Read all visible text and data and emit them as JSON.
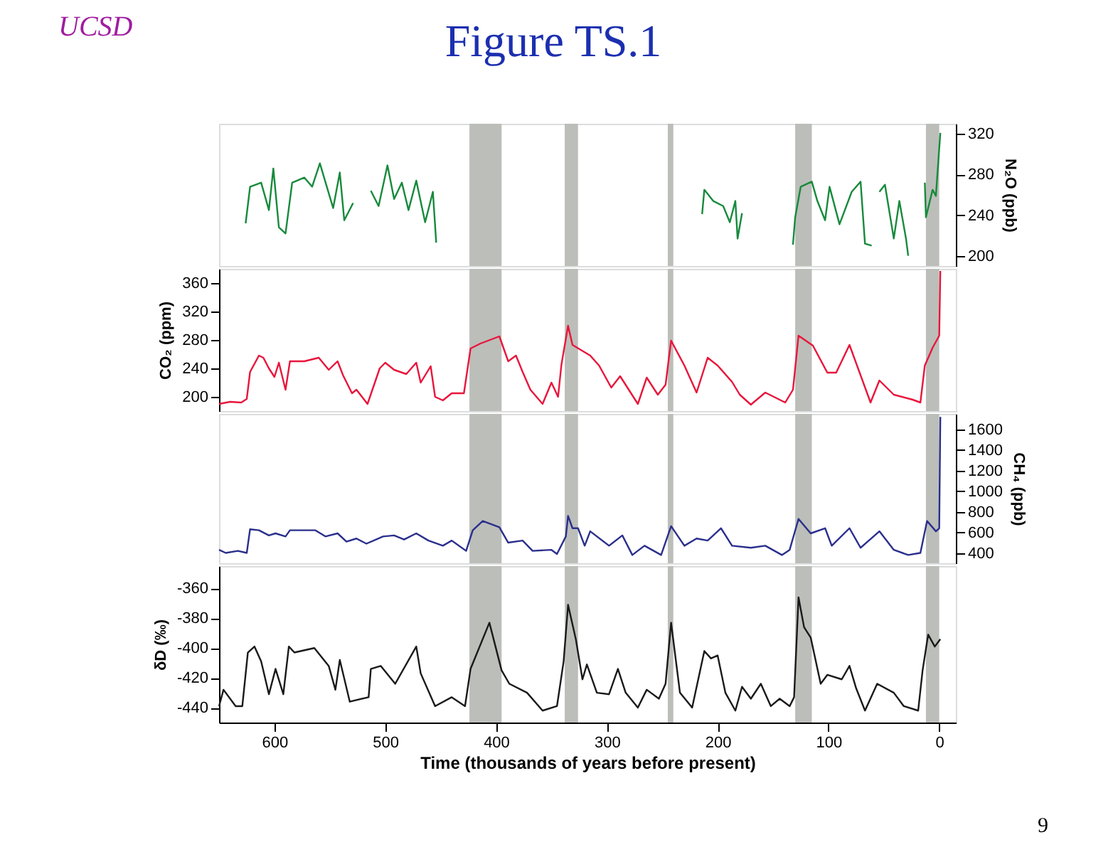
{
  "chart_data": [
    {
      "type": "line",
      "title": "Figure TS.1",
      "annotations": [
        "UCSD"
      ],
      "ylabel": "N₂O (ppb)",
      "xlim": [
        650,
        -15
      ],
      "ylim": [
        190,
        330
      ],
      "yticks": [
        200,
        240,
        280,
        320
      ],
      "tick_labels": "y",
      "grid": false,
      "line_style": "solid",
      "marker": "none",
      "bands": [
        {
          "axis": "x",
          "from": 424,
          "to": 395,
          "color": "#bcbeb9"
        },
        {
          "axis": "x",
          "from": 338,
          "to": 326,
          "color": "#bcbeb9"
        },
        {
          "axis": "x",
          "from": 245,
          "to": 240,
          "color": "#bcbeb9"
        },
        {
          "axis": "x",
          "from": 130,
          "to": 115,
          "color": "#bcbeb9"
        },
        {
          "axis": "x",
          "from": 12,
          "to": 0,
          "color": "#bcbeb9"
        }
      ],
      "series": [
        {
          "color": "#178a3c",
          "x": [
            626,
            622,
            612,
            605,
            601,
            596,
            590,
            584,
            573,
            566,
            559,
            547,
            541,
            537,
            529,
            521,
            513,
            506,
            498,
            492,
            485,
            479,
            472,
            464,
            457,
            454,
            334,
            214,
            212,
            204,
            195,
            189,
            184,
            182,
            178,
            155,
            132,
            130,
            125,
            115,
            110,
            103,
            99,
            90,
            79,
            71,
            67,
            61,
            57,
            54,
            49,
            41,
            36,
            30,
            28,
            20,
            13,
            12,
            6,
            3,
            -1
          ],
          "values": [
            232,
            268,
            272,
            245,
            286,
            228,
            222,
            272,
            277,
            268,
            291,
            247,
            282,
            235,
            252,
            null,
            264,
            249,
            289,
            256,
            272,
            245,
            274,
            233,
            263,
            213,
            null,
            241,
            265,
            254,
            249,
            233,
            254,
            217,
            242,
            null,
            211,
            238,
            268,
            273,
            254,
            235,
            268,
            231,
            263,
            273,
            212,
            210,
            null,
            263,
            270,
            217,
            254,
            217,
            200,
            null,
            272,
            238,
            265,
            259,
            321
          ]
        }
      ]
    },
    {
      "type": "line",
      "ylabel": "CO₂ (ppm)",
      "xlim": [
        650,
        -15
      ],
      "ylim": [
        180,
        380
      ],
      "yticks": [
        200,
        240,
        280,
        320,
        360
      ],
      "tick_labels": "y",
      "grid": false,
      "line_style": "solid",
      "marker": "none",
      "bands": [
        {
          "axis": "x",
          "from": 424,
          "to": 395,
          "color": "#bcbeb9"
        },
        {
          "axis": "x",
          "from": 338,
          "to": 326,
          "color": "#bcbeb9"
        },
        {
          "axis": "x",
          "from": 245,
          "to": 240,
          "color": "#bcbeb9"
        },
        {
          "axis": "x",
          "from": 130,
          "to": 115,
          "color": "#bcbeb9"
        },
        {
          "axis": "x",
          "from": 12,
          "to": 0,
          "color": "#bcbeb9"
        }
      ],
      "series": [
        {
          "color": "#e8163c",
          "x": [
            650,
            640,
            630,
            625,
            622,
            614,
            610,
            605,
            600,
            596,
            590,
            586,
            573,
            560,
            551,
            543,
            538,
            530,
            526,
            516,
            505,
            500,
            492,
            481,
            472,
            468,
            459,
            455,
            448,
            440,
            429,
            423,
            414,
            397,
            389,
            382,
            376,
            369,
            358,
            350,
            344,
            341,
            335,
            331,
            315,
            307,
            296,
            288,
            272,
            264,
            254,
            247,
            242,
            230,
            219,
            209,
            200,
            187,
            180,
            170,
            157,
            139,
            132,
            127,
            114,
            101,
            93,
            81,
            62,
            54,
            41,
            24,
            17,
            13,
            6,
            0,
            -1
          ],
          "values": [
            190,
            193,
            192,
            197,
            235,
            258,
            255,
            240,
            228,
            248,
            210,
            250,
            250,
            255,
            238,
            250,
            230,
            205,
            210,
            190,
            240,
            248,
            238,
            232,
            248,
            220,
            243,
            200,
            195,
            205,
            205,
            268,
            275,
            285,
            250,
            258,
            235,
            210,
            190,
            220,
            200,
            245,
            300,
            273,
            258,
            244,
            213,
            229,
            190,
            227,
            203,
            217,
            279,
            244,
            206,
            255,
            244,
            221,
            203,
            189,
            206,
            192,
            210,
            286,
            272,
            234,
            234,
            273,
            192,
            223,
            203,
            196,
            192,
            244,
            269,
            286,
            377
          ]
        }
      ]
    },
    {
      "type": "line",
      "ylabel": "CH₄ (ppb)",
      "xlim": [
        650,
        -15
      ],
      "ylim": [
        300,
        1750
      ],
      "yticks": [
        400,
        600,
        800,
        1000,
        1200,
        1400,
        1600
      ],
      "tick_labels": "y",
      "grid": false,
      "line_style": "solid",
      "marker": "none",
      "bands": [
        {
          "axis": "x",
          "from": 424,
          "to": 395,
          "color": "#bcbeb9"
        },
        {
          "axis": "x",
          "from": 338,
          "to": 326,
          "color": "#bcbeb9"
        },
        {
          "axis": "x",
          "from": 245,
          "to": 240,
          "color": "#bcbeb9"
        },
        {
          "axis": "x",
          "from": 130,
          "to": 115,
          "color": "#bcbeb9"
        },
        {
          "axis": "x",
          "from": 12,
          "to": 0,
          "color": "#bcbeb9"
        }
      ],
      "series": [
        {
          "color": "#2a2f8c",
          "x": [
            650,
            644,
            633,
            625,
            622,
            614,
            605,
            599,
            590,
            586,
            569,
            563,
            554,
            543,
            535,
            526,
            517,
            502,
            492,
            483,
            472,
            461,
            448,
            440,
            427,
            421,
            412,
            397,
            389,
            376,
            367,
            350,
            345,
            337,
            335,
            331,
            326,
            320,
            315,
            298,
            286,
            277,
            266,
            251,
            242,
            230,
            219,
            209,
            197,
            187,
            170,
            157,
            142,
            135,
            127,
            116,
            103,
            97,
            81,
            71,
            54,
            41,
            28,
            17,
            11,
            3,
            0,
            -1
          ],
          "values": [
            430,
            400,
            420,
            400,
            630,
            620,
            570,
            590,
            560,
            620,
            620,
            620,
            560,
            590,
            510,
            540,
            490,
            560,
            570,
            530,
            590,
            520,
            470,
            520,
            420,
            620,
            710,
            650,
            500,
            520,
            420,
            430,
            390,
            560,
            760,
            640,
            640,
            470,
            610,
            470,
            570,
            380,
            470,
            380,
            660,
            470,
            540,
            520,
            640,
            470,
            450,
            470,
            380,
            430,
            730,
            590,
            640,
            470,
            640,
            450,
            610,
            430,
            380,
            400,
            710,
            610,
            640,
            1720
          ]
        }
      ]
    },
    {
      "type": "line",
      "ylabel": "δD (‰)",
      "xlabel": "Time (thousands of years before present)",
      "annotations": [
        "9"
      ],
      "xlim": [
        650,
        -15
      ],
      "xticks": [
        600,
        500,
        400,
        300,
        200,
        100,
        0
      ],
      "ylim": [
        -450,
        -345
      ],
      "yticks": [
        -440,
        -420,
        -400,
        -380,
        -360
      ],
      "grid": false,
      "line_style": "solid",
      "marker": "none",
      "bands": [
        {
          "axis": "x",
          "from": 424,
          "to": 395,
          "color": "#bcbeb9"
        },
        {
          "axis": "x",
          "from": 338,
          "to": 326,
          "color": "#bcbeb9"
        },
        {
          "axis": "x",
          "from": 245,
          "to": 240,
          "color": "#bcbeb9"
        },
        {
          "axis": "x",
          "from": 130,
          "to": 115,
          "color": "#bcbeb9"
        },
        {
          "axis": "x",
          "from": 12,
          "to": 0,
          "color": "#bcbeb9"
        }
      ],
      "series": [
        {
          "color": "#1a1a1a",
          "x": [
            650,
            646,
            635,
            629,
            624,
            618,
            612,
            605,
            599,
            592,
            587,
            582,
            564,
            551,
            545,
            541,
            532,
            515,
            513,
            504,
            491,
            472,
            468,
            455,
            440,
            428,
            423,
            406,
            395,
            388,
            372,
            358,
            345,
            339,
            335,
            328,
            322,
            318,
            309,
            298,
            290,
            283,
            272,
            264,
            253,
            247,
            242,
            234,
            223,
            212,
            206,
            200,
            193,
            184,
            178,
            170,
            161,
            152,
            144,
            135,
            131,
            127,
            122,
            116,
            107,
            101,
            88,
            81,
            75,
            67,
            56,
            41,
            32,
            19,
            15,
            10,
            4,
            -1
          ],
          "values": [
            -439,
            -428,
            -439,
            -439,
            -403,
            -399,
            -409,
            -431,
            -414,
            -431,
            -399,
            -403,
            -400,
            -412,
            -428,
            -408,
            -436,
            -433,
            -414,
            -412,
            -424,
            -399,
            -417,
            -439,
            -433,
            -439,
            -414,
            -383,
            -415,
            -424,
            -430,
            -442,
            -439,
            -409,
            -371,
            -394,
            -421,
            -411,
            -430,
            -431,
            -414,
            -430,
            -440,
            -428,
            -434,
            -424,
            -383,
            -430,
            -440,
            -402,
            -407,
            -405,
            -430,
            -442,
            -426,
            -434,
            -424,
            -439,
            -434,
            -439,
            -433,
            -366,
            -386,
            -393,
            -424,
            -418,
            -421,
            -412,
            -427,
            -442,
            -424,
            -430,
            -439,
            -442,
            -415,
            -391,
            -399,
            -394
          ]
        }
      ]
    }
  ]
}
